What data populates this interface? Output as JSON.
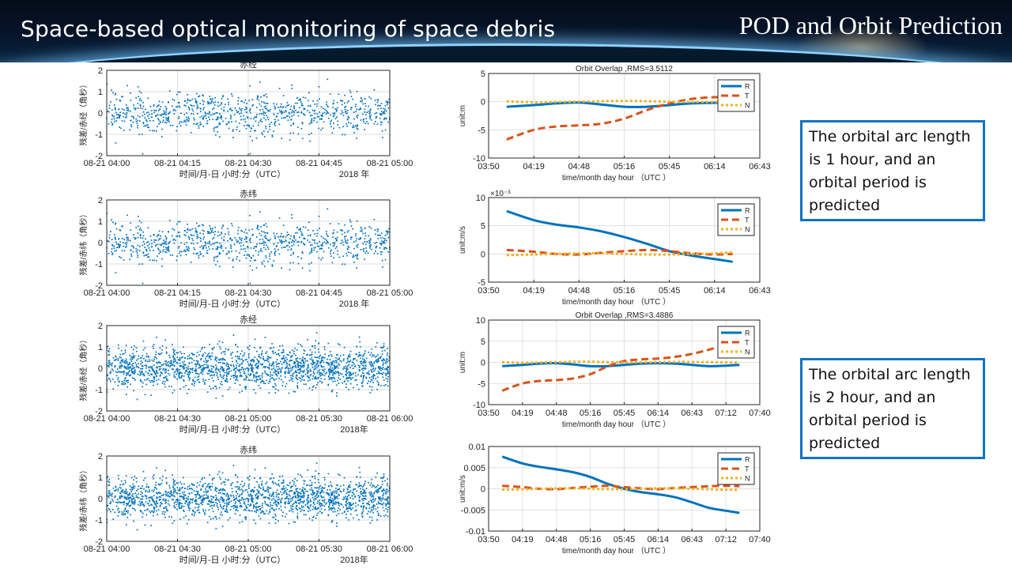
{
  "header": {
    "title_left": "Space-based optical monitoring of space debris",
    "title_right": "POD and Orbit Prediction"
  },
  "notes": [
    {
      "text": "The orbital arc length is 1 hour, and an orbital period is predicted"
    },
    {
      "text": "The orbital arc length is 2 hour, and an orbital period is predicted"
    }
  ],
  "colors": {
    "scatter": "#0072bd",
    "R": "#0072bd",
    "T": "#d95319",
    "N": "#edb120",
    "note_border": "#1273c1"
  },
  "chart_data": [
    {
      "type": "scatter",
      "title": "赤经",
      "ylabel": "残差/赤经（角秒）",
      "xlabel": "时间/月-日 小时:分（UTC）",
      "year_label": "2018 年",
      "ylim": [
        -2,
        2
      ],
      "yticks": [
        "2",
        "1",
        "0",
        "-1",
        "-2"
      ],
      "xticks": [
        "08-21 04:00",
        "08-21 04:15",
        "08-21 04:30",
        "08-21 04:45",
        "08-21 05:00"
      ],
      "n_points": 900,
      "spread_std": 0.5,
      "seed": 11
    },
    {
      "type": "scatter",
      "title": "赤纬",
      "ylabel": "残差/赤纬（角秒）",
      "xlabel": "时间/月-日 小时:分（UTC）",
      "year_label": "2018 年",
      "ylim": [
        -2,
        2
      ],
      "yticks": [
        "2",
        "1",
        "0",
        "-1",
        "-2"
      ],
      "xticks": [
        "08-21 04:00",
        "08-21 04:15",
        "08-21 04:30",
        "08-21 04:45",
        "08-21 05:00"
      ],
      "n_points": 900,
      "spread_std": 0.5,
      "seed": 11
    },
    {
      "type": "scatter",
      "title": "赤经",
      "ylabel": "残差/赤经（角秒）",
      "xlabel": "时间/月-日 小时:分（UTC）",
      "year_label": "2018年",
      "ylim": [
        -2,
        2
      ],
      "yticks": [
        "2",
        "1",
        "0",
        "-1",
        "-2"
      ],
      "xticks": [
        "08-21 04:00",
        "08-21 04:30",
        "08-21 05:00",
        "08-21 05:30",
        "08-21 06:00"
      ],
      "n_points": 1800,
      "spread_std": 0.5,
      "seed": 23
    },
    {
      "type": "scatter",
      "title": "赤纬",
      "ylabel": "残差/赤纬（角秒）",
      "xlabel": "时间/月-日 小时:分（UTC）",
      "year_label": "2018年",
      "ylim": [
        -2,
        2
      ],
      "yticks": [
        "2",
        "1",
        "0",
        "-1",
        "-2"
      ],
      "xticks": [
        "08-21 04:00",
        "08-21 04:30",
        "08-21 05:00",
        "08-21 05:30",
        "08-21 06:00"
      ],
      "n_points": 1800,
      "spread_std": 0.5,
      "seed": 23
    },
    {
      "type": "line",
      "title": "Orbit Overlap ,RMS=3.5112",
      "ylabel": "unit:m",
      "xlabel": "time/month day hour  （UTC  ）",
      "ylim": [
        -10,
        5
      ],
      "yticks": [
        "5",
        "0",
        "-5",
        "-10"
      ],
      "ytick_values": [
        5,
        0,
        -5,
        -10
      ],
      "xticks": [
        "03:50",
        "04:19",
        "04:48",
        "05:16",
        "05:45",
        "06:14",
        "06:43"
      ],
      "xlim": [
        0,
        6
      ],
      "legend": [
        "R",
        "T",
        "N"
      ],
      "legend_position": "top-right",
      "series": [
        {
          "name": "R",
          "x": [
            0.4,
            1,
            1.5,
            2,
            2.5,
            3,
            3.5,
            4,
            4.5,
            5,
            5.4
          ],
          "y": [
            -0.9,
            -0.6,
            -0.3,
            -0.15,
            -0.5,
            -0.9,
            -0.9,
            -0.6,
            -0.3,
            -0.2,
            -0.2
          ]
        },
        {
          "name": "T",
          "x": [
            0.4,
            1,
            1.5,
            2,
            2.5,
            3,
            3.5,
            4,
            4.5,
            5,
            5.4
          ],
          "y": [
            -6.7,
            -5.0,
            -4.4,
            -4.2,
            -3.9,
            -3.0,
            -1.5,
            -0.3,
            0.5,
            0.8,
            0.9
          ]
        },
        {
          "name": "N",
          "x": [
            0.4,
            1,
            1.5,
            2,
            2.5,
            3,
            3.5,
            4,
            4.5,
            5,
            5.4
          ],
          "y": [
            0.05,
            -0.1,
            -0.05,
            0.0,
            0.1,
            0.15,
            0.1,
            0.0,
            -0.05,
            -0.05,
            0.0
          ]
        }
      ]
    },
    {
      "type": "line",
      "title": "",
      "ylabel": "unit:m/s",
      "xlabel": "time/month day hour  （UTC  ）",
      "exponent": "×10⁻³",
      "ylim": [
        -5,
        10
      ],
      "yticks": [
        "10",
        "5",
        "0",
        "-5"
      ],
      "ytick_values": [
        10,
        5,
        0,
        -5
      ],
      "xticks": [
        "03:50",
        "04:19",
        "04:48",
        "05:16",
        "05:45",
        "06:14",
        "06:43"
      ],
      "xlim": [
        0,
        6
      ],
      "legend": [
        "R",
        "T",
        "N"
      ],
      "legend_position": "top-right",
      "series": [
        {
          "name": "R",
          "x": [
            0.4,
            1,
            1.5,
            2,
            2.5,
            3,
            3.5,
            4,
            4.5,
            5,
            5.4
          ],
          "y": [
            7.6,
            6.0,
            5.2,
            4.7,
            4.0,
            3.0,
            1.8,
            0.5,
            -0.3,
            -0.9,
            -1.4
          ]
        },
        {
          "name": "T",
          "x": [
            0.4,
            1,
            1.5,
            2,
            2.5,
            3,
            3.5,
            4,
            4.5,
            5,
            5.4
          ],
          "y": [
            0.7,
            0.4,
            0.0,
            -0.1,
            0.2,
            0.5,
            0.7,
            0.5,
            0.1,
            -0.1,
            0.0
          ]
        },
        {
          "name": "N",
          "x": [
            0.4,
            1,
            1.5,
            2,
            2.5,
            3,
            3.5,
            4,
            4.5,
            5,
            5.4
          ],
          "y": [
            -0.2,
            -0.1,
            0.0,
            0.1,
            0.1,
            0.0,
            -0.1,
            -0.1,
            0.0,
            0.1,
            0.3
          ]
        }
      ]
    },
    {
      "type": "line",
      "title": "Orbit Overlap ,RMS=3.4886",
      "ylabel": "unit:m",
      "xlabel": "time/month day hour  （UTC  ）",
      "ylim": [
        -10,
        10
      ],
      "yticks": [
        "10",
        "5",
        "0",
        "-5",
        "-10"
      ],
      "ytick_values": [
        10,
        5,
        0,
        -5,
        -10
      ],
      "xticks": [
        "03:50",
        "04:19",
        "04:48",
        "05:16",
        "05:45",
        "06:14",
        "06:43",
        "07:12",
        "07:40"
      ],
      "xlim": [
        0,
        8
      ],
      "legend": [
        "R",
        "T",
        "N"
      ],
      "legend_position": "top-right",
      "series": [
        {
          "name": "R",
          "x": [
            0.4,
            1,
            1.5,
            2,
            2.5,
            3,
            3.5,
            4,
            4.5,
            5,
            5.5,
            6,
            6.5,
            7,
            7.4
          ],
          "y": [
            -0.9,
            -0.6,
            -0.3,
            -0.2,
            -0.5,
            -0.9,
            -0.9,
            -0.6,
            -0.3,
            -0.2,
            -0.3,
            -0.6,
            -0.9,
            -0.8,
            -0.6
          ]
        },
        {
          "name": "T",
          "x": [
            0.4,
            1,
            1.5,
            2,
            2.5,
            3,
            3.5,
            4,
            4.5,
            5,
            5.5,
            6,
            6.5,
            7,
            7.4
          ],
          "y": [
            -6.7,
            -5.0,
            -4.4,
            -4.2,
            -3.8,
            -2.8,
            -1.0,
            0.3,
            0.7,
            0.9,
            1.3,
            2.0,
            3.0,
            4.2,
            5.0
          ]
        },
        {
          "name": "N",
          "x": [
            0.4,
            1,
            1.5,
            2,
            2.5,
            3,
            3.5,
            4,
            4.5,
            5,
            5.5,
            6,
            6.5,
            7,
            7.4
          ],
          "y": [
            0.05,
            -0.1,
            -0.05,
            0.05,
            0.15,
            0.15,
            0.05,
            0.0,
            0.0,
            0.05,
            0.1,
            0.1,
            0.05,
            0.0,
            -0.05
          ]
        }
      ]
    },
    {
      "type": "line",
      "title": "",
      "ylabel": "unit:m/s",
      "xlabel": "time/month day hour  （UTC  ）",
      "ylim": [
        -0.01,
        0.01
      ],
      "yticks": [
        "0.01",
        "0.005",
        "0",
        "-0.005",
        "-0.01"
      ],
      "ytick_values": [
        0.01,
        0.005,
        0,
        -0.005,
        -0.01
      ],
      "xticks": [
        "03:50",
        "04:19",
        "04:48",
        "05:16",
        "05:45",
        "06:14",
        "06:43",
        "07:12",
        "07:40"
      ],
      "xlim": [
        0,
        8
      ],
      "legend": [
        "R",
        "T",
        "N"
      ],
      "legend_position": "top-right",
      "series": [
        {
          "name": "R",
          "x": [
            0.4,
            1,
            1.5,
            2,
            2.5,
            3,
            3.5,
            4,
            4.5,
            5,
            5.5,
            6,
            6.5,
            7,
            7.4
          ],
          "y": [
            0.0076,
            0.006,
            0.0052,
            0.0046,
            0.0039,
            0.0028,
            0.0012,
            0.0,
            -0.0008,
            -0.0013,
            -0.002,
            -0.0032,
            -0.0045,
            -0.0052,
            -0.0057
          ]
        },
        {
          "name": "T",
          "x": [
            0.4,
            1,
            1.5,
            2,
            2.5,
            3,
            3.5,
            4,
            4.5,
            5,
            5.5,
            6,
            6.5,
            7,
            7.4
          ],
          "y": [
            0.0007,
            0.0004,
            0.0,
            -0.0001,
            0.0002,
            0.0005,
            0.0007,
            0.0004,
            0.0001,
            -0.0001,
            0.0002,
            0.0004,
            0.0006,
            0.0007,
            0.0006
          ]
        },
        {
          "name": "N",
          "x": [
            0.4,
            1,
            1.5,
            2,
            2.5,
            3,
            3.5,
            4,
            4.5,
            5,
            5.5,
            6,
            6.5,
            7,
            7.4
          ],
          "y": [
            -0.0002,
            -0.0001,
            0.0,
            0.0001,
            0.0001,
            0.0,
            -0.0001,
            -0.0001,
            0.0,
            0.0001,
            0.0001,
            0.0,
            -0.0001,
            -0.0002,
            -0.0002
          ]
        }
      ]
    }
  ]
}
